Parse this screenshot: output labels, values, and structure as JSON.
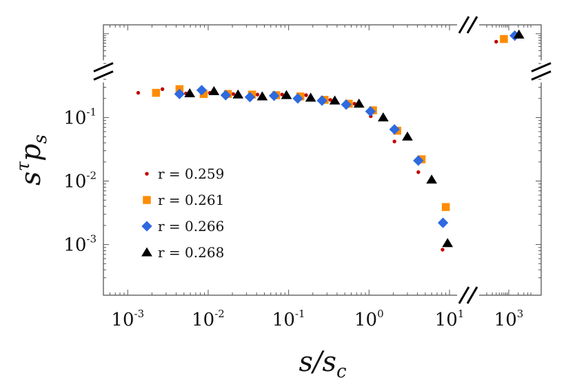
{
  "chart_data": {
    "type": "scatter",
    "xscale": "log",
    "yscale": "log",
    "xlabel": {
      "base": "s/s",
      "sub": "c"
    },
    "ylabel": {
      "base": "s",
      "sup": "τ",
      "mid": "p",
      "sub": "s"
    },
    "x_ticks": [
      {
        "base": "10",
        "exp": "-3",
        "value": 0.001
      },
      {
        "base": "10",
        "exp": "-2",
        "value": 0.01
      },
      {
        "base": "10",
        "exp": "-1",
        "value": 0.1
      },
      {
        "base": "10",
        "exp": "0",
        "value": 1
      },
      {
        "base": "10",
        "exp": "1",
        "value": 10
      },
      {
        "base": "10",
        "exp": "3",
        "value": 1000
      }
    ],
    "y_ticks": [
      {
        "base": "10",
        "exp": "-1",
        "value": 0.1
      },
      {
        "base": "10",
        "exp": "-2",
        "value": 0.01
      },
      {
        "base": "10",
        "exp": "-3",
        "value": 0.001
      }
    ],
    "x_break": [
      10,
      200
    ],
    "y_break": [
      0.4,
      2
    ],
    "x_main_range": [
      0.00055,
      10
    ],
    "x_upper_range": [
      200,
      5000
    ],
    "y_main_range": [
      0.00025,
      0.4
    ],
    "y_upper_range": [
      2,
      15
    ],
    "legend_position": "left",
    "grid": false,
    "series": [
      {
        "name": "r = 0.259",
        "marker": "circle",
        "color": "#c00000",
        "points": [
          [
            0.00135,
            0.245
          ],
          [
            0.0027,
            0.28
          ],
          [
            0.0053,
            0.24
          ],
          [
            0.0105,
            0.245
          ],
          [
            0.0205,
            0.235
          ],
          [
            0.041,
            0.23
          ],
          [
            0.083,
            0.23
          ],
          [
            0.165,
            0.225
          ],
          [
            0.33,
            0.19
          ],
          [
            0.66,
            0.165
          ],
          [
            1.05,
            0.105
          ],
          [
            2.07,
            0.042
          ],
          [
            4.1,
            0.0138
          ],
          [
            8.2,
            0.00083
          ],
          [
            400,
            6.5
          ]
        ]
      },
      {
        "name": "r = 0.261",
        "marker": "square",
        "color": "#ff8c00",
        "points": [
          [
            0.00225,
            0.245
          ],
          [
            0.0044,
            0.28
          ],
          [
            0.0088,
            0.235
          ],
          [
            0.0176,
            0.235
          ],
          [
            0.035,
            0.23
          ],
          [
            0.07,
            0.225
          ],
          [
            0.14,
            0.215
          ],
          [
            0.28,
            0.19
          ],
          [
            0.56,
            0.165
          ],
          [
            1.12,
            0.13
          ],
          [
            2.24,
            0.062
          ],
          [
            4.5,
            0.022
          ],
          [
            9.0,
            0.0039
          ],
          [
            700,
            7.5
          ]
        ]
      },
      {
        "name": "r = 0.266",
        "marker": "diamond",
        "color": "#2e6ae0",
        "points": [
          [
            0.0044,
            0.235
          ],
          [
            0.0083,
            0.27
          ],
          [
            0.0165,
            0.225
          ],
          [
            0.033,
            0.21
          ],
          [
            0.066,
            0.22
          ],
          [
            0.13,
            0.2
          ],
          [
            0.26,
            0.185
          ],
          [
            0.52,
            0.16
          ],
          [
            1.04,
            0.125
          ],
          [
            2.07,
            0.065
          ],
          [
            4.1,
            0.021
          ],
          [
            8.3,
            0.0022
          ],
          [
            1550,
            9.0
          ]
        ]
      },
      {
        "name": "r = 0.268",
        "marker": "triangle",
        "color": "#000000",
        "points": [
          [
            0.0059,
            0.24
          ],
          [
            0.0118,
            0.26
          ],
          [
            0.0235,
            0.23
          ],
          [
            0.047,
            0.215
          ],
          [
            0.094,
            0.225
          ],
          [
            0.188,
            0.205
          ],
          [
            0.375,
            0.185
          ],
          [
            0.75,
            0.165
          ],
          [
            1.5,
            0.1
          ],
          [
            3.0,
            0.05
          ],
          [
            6.0,
            0.0105
          ],
          [
            11.5,
            0.00105
          ],
          [
            2100,
            9.5
          ]
        ]
      }
    ]
  }
}
